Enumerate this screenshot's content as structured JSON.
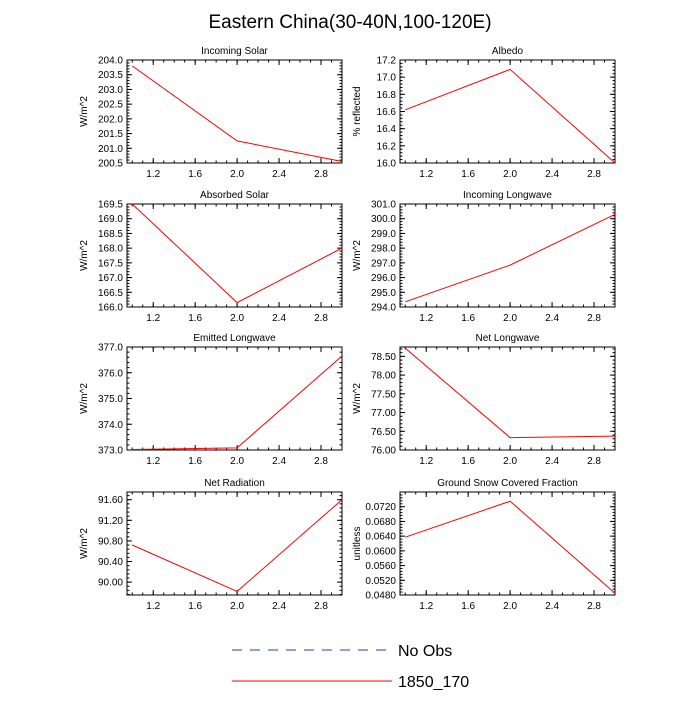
{
  "title": "Eastern China(30-40N,100-120E)",
  "colors": {
    "model": "#ff0000",
    "obs": "#3333cc",
    "frame": "#000000"
  },
  "legend": {
    "obs_label": "No Obs",
    "model_label": "1850_170"
  },
  "chart_data": [
    {
      "type": "line",
      "title": "Incoming Solar",
      "ylabel": "W/m^2",
      "x": [
        1,
        2,
        3
      ],
      "xlim": [
        0.95,
        3.0
      ],
      "xticks": [
        1.2,
        1.6,
        2.0,
        2.4,
        2.8
      ],
      "xticklabels": [
        "1.2",
        "1.6",
        "2.0",
        "2.4",
        "2.8"
      ],
      "ylim": [
        200.5,
        204.0
      ],
      "yticks": [
        200.5,
        201.0,
        201.5,
        202.0,
        202.5,
        203.0,
        203.5,
        204.0
      ],
      "yticklabels": [
        "200.5",
        "201.0",
        "201.5",
        "202.0",
        "202.5",
        "203.0",
        "203.5",
        "204.0"
      ],
      "series": [
        {
          "name": "1850_170",
          "values": [
            203.8,
            201.25,
            200.55
          ]
        }
      ]
    },
    {
      "type": "line",
      "title": "Albedo",
      "ylabel": "% reflected",
      "x": [
        1,
        2,
        3
      ],
      "xlim": [
        0.95,
        3.0
      ],
      "xticks": [
        1.2,
        1.6,
        2.0,
        2.4,
        2.8
      ],
      "xticklabels": [
        "1.2",
        "1.6",
        "2.0",
        "2.4",
        "2.8"
      ],
      "ylim": [
        16.0,
        17.2
      ],
      "yticks": [
        16.0,
        16.2,
        16.4,
        16.6,
        16.8,
        17.0,
        17.2
      ],
      "yticklabels": [
        "16.0",
        "16.2",
        "16.4",
        "16.6",
        "16.8",
        "17.0",
        "17.2"
      ],
      "series": [
        {
          "name": "1850_170",
          "values": [
            16.62,
            17.09,
            16.0
          ]
        }
      ]
    },
    {
      "type": "line",
      "title": "Absorbed Solar",
      "ylabel": "W/m^2",
      "x": [
        1,
        2,
        3
      ],
      "xlim": [
        0.95,
        3.0
      ],
      "xticks": [
        1.2,
        1.6,
        2.0,
        2.4,
        2.8
      ],
      "xticklabels": [
        "1.2",
        "1.6",
        "2.0",
        "2.4",
        "2.8"
      ],
      "ylim": [
        166.0,
        169.5
      ],
      "yticks": [
        166.0,
        166.5,
        167.0,
        167.5,
        168.0,
        168.5,
        169.0,
        169.5
      ],
      "yticklabels": [
        "166.0",
        "166.5",
        "167.0",
        "167.5",
        "168.0",
        "168.5",
        "169.0",
        "169.5"
      ],
      "series": [
        {
          "name": "1850_170",
          "values": [
            169.5,
            166.15,
            168.0
          ]
        }
      ]
    },
    {
      "type": "line",
      "title": "Incoming Longwave",
      "ylabel": "W/m^2",
      "x": [
        1,
        2,
        3
      ],
      "xlim": [
        0.95,
        3.0
      ],
      "xticks": [
        1.2,
        1.6,
        2.0,
        2.4,
        2.8
      ],
      "xticklabels": [
        "1.2",
        "1.6",
        "2.0",
        "2.4",
        "2.8"
      ],
      "ylim": [
        294.0,
        301.0
      ],
      "yticks": [
        294.0,
        295.0,
        296.0,
        297.0,
        298.0,
        299.0,
        300.0,
        301.0
      ],
      "yticklabels": [
        "294.0",
        "295.0",
        "296.0",
        "297.0",
        "298.0",
        "299.0",
        "300.0",
        "301.0"
      ],
      "series": [
        {
          "name": "1850_170",
          "values": [
            294.35,
            296.85,
            300.3
          ]
        }
      ]
    },
    {
      "type": "line",
      "title": "Emitted Longwave",
      "ylabel": "W/m^2",
      "x": [
        1,
        2,
        3
      ],
      "xlim": [
        0.95,
        3.0
      ],
      "xticks": [
        1.2,
        1.6,
        2.0,
        2.4,
        2.8
      ],
      "xticklabels": [
        "1.2",
        "1.6",
        "2.0",
        "2.4",
        "2.8"
      ],
      "ylim": [
        373.0,
        377.0
      ],
      "yticks": [
        373.0,
        374.0,
        375.0,
        376.0,
        377.0
      ],
      "yticklabels": [
        "373.0",
        "374.0",
        "375.0",
        "376.0",
        "377.0"
      ],
      "series": [
        {
          "name": "1850_170",
          "values": [
            373.02,
            373.08,
            376.65
          ]
        }
      ]
    },
    {
      "type": "line",
      "title": "Net Longwave",
      "ylabel": "W/m^2",
      "x": [
        1,
        2,
        3
      ],
      "xlim": [
        0.95,
        3.0
      ],
      "xticks": [
        1.2,
        1.6,
        2.0,
        2.4,
        2.8
      ],
      "xticklabels": [
        "1.2",
        "1.6",
        "2.0",
        "2.4",
        "2.8"
      ],
      "ylim": [
        76.0,
        78.75
      ],
      "yticks": [
        76.0,
        76.5,
        77.0,
        77.5,
        78.0,
        78.5
      ],
      "yticklabels": [
        "76.00",
        "76.50",
        "77.00",
        "77.50",
        "78.00",
        "78.50"
      ],
      "series": [
        {
          "name": "1850_170",
          "values": [
            78.72,
            76.33,
            76.37
          ]
        }
      ]
    },
    {
      "type": "line",
      "title": "Net Radiation",
      "ylabel": "W/m^2",
      "x": [
        1,
        2,
        3
      ],
      "xlim": [
        0.95,
        3.0
      ],
      "xticks": [
        1.2,
        1.6,
        2.0,
        2.4,
        2.8
      ],
      "xticklabels": [
        "1.2",
        "1.6",
        "2.0",
        "2.4",
        "2.8"
      ],
      "ylim": [
        89.75,
        91.75
      ],
      "yticks": [
        90.0,
        90.4,
        90.8,
        91.2,
        91.6
      ],
      "yticklabels": [
        "90.00",
        "90.40",
        "90.80",
        "91.20",
        "91.60"
      ],
      "series": [
        {
          "name": "1850_170",
          "values": [
            90.72,
            89.82,
            91.6
          ]
        }
      ]
    },
    {
      "type": "line",
      "title": "Ground Snow Covered Fraction",
      "ylabel": "unitless",
      "x": [
        1,
        2,
        3
      ],
      "xlim": [
        0.95,
        3.0
      ],
      "xticks": [
        1.2,
        1.6,
        2.0,
        2.4,
        2.8
      ],
      "xticklabels": [
        "1.2",
        "1.6",
        "2.0",
        "2.4",
        "2.8"
      ],
      "ylim": [
        0.048,
        0.076
      ],
      "yticks": [
        0.048,
        0.052,
        0.056,
        0.06,
        0.064,
        0.068,
        0.072
      ],
      "yticklabels": [
        "0.0480",
        "0.0520",
        "0.0560",
        "0.0600",
        "0.0640",
        "0.0680",
        "0.0720"
      ],
      "series": [
        {
          "name": "1850_170",
          "values": [
            0.0637,
            0.0735,
            0.0485
          ]
        }
      ]
    }
  ]
}
